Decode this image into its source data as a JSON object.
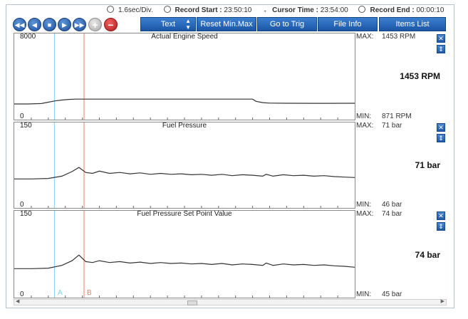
{
  "status": {
    "time_div": "1.6sec/Div.",
    "record_start_label": "Record Start :",
    "record_start": "23:50:10",
    "cursor_time_label": "Cursor Time :",
    "cursor_time": "23:54:00",
    "record_end_label": "Record End :",
    "record_end": "00:00:10"
  },
  "toolbar": {
    "text_button": "Text",
    "reset_button": "Reset Min.Max",
    "goto_trig_button": "Go to Trig",
    "file_info_button": "File Info",
    "items_list_button": "Items List"
  },
  "cursors": {
    "a_label": "A",
    "b_label": "B",
    "a_color": "#7fd0ea",
    "b_color": "#e0826a"
  },
  "charts": [
    {
      "title": "Actual Engine Speed",
      "ymax": "8000",
      "ymin": "0",
      "max_label": "MAX:",
      "max_value": "1453 RPM",
      "min_label": "MIN:",
      "min_value": "871 RPM",
      "current_value": "1453 RPM"
    },
    {
      "title": "Fuel Pressure",
      "ymax": "150",
      "ymin": "0",
      "max_label": "MAX:",
      "max_value": "71 bar",
      "min_label": "MIN:",
      "min_value": "46 bar",
      "current_value": "71 bar"
    },
    {
      "title": "Fuel Pressure Set Point Value",
      "ymax": "150",
      "ymin": "0",
      "max_label": "MAX:",
      "max_value": "74 bar",
      "min_label": "MIN:",
      "min_value": "45 bar",
      "current_value": "74 bar"
    }
  ],
  "chart_data": [
    {
      "type": "line",
      "title": "Actual Engine Speed",
      "ylim": [
        0,
        8000
      ],
      "x": [
        0,
        4,
        8,
        10,
        12,
        14,
        16,
        18,
        20,
        22,
        24,
        26,
        28,
        30,
        32,
        40,
        50,
        60,
        70,
        71,
        73,
        75,
        80,
        90,
        100
      ],
      "values": [
        900,
        900,
        950,
        1100,
        1250,
        1350,
        1420,
        1450,
        1450,
        1450,
        1450,
        1450,
        1450,
        1450,
        1453,
        1453,
        1453,
        1453,
        1453,
        1200,
        1050,
        1000,
        980,
        970,
        980
      ]
    },
    {
      "type": "line",
      "title": "Fuel Pressure",
      "ylim": [
        0,
        150
      ],
      "x": [
        0,
        5,
        10,
        14,
        17,
        19,
        21,
        23,
        25,
        28,
        31,
        34,
        37,
        40,
        43,
        46,
        49,
        52,
        55,
        58,
        61,
        64,
        67,
        70,
        73,
        74,
        76,
        79,
        82,
        85,
        88,
        91,
        94,
        97,
        100
      ],
      "values": [
        46,
        46,
        47,
        52,
        62,
        71,
        60,
        58,
        63,
        58,
        60,
        57,
        59,
        56,
        58,
        56,
        57,
        55,
        56,
        54,
        56,
        53,
        55,
        54,
        52,
        56,
        52,
        55,
        53,
        54,
        52,
        53,
        51,
        50,
        49
      ]
    },
    {
      "type": "line",
      "title": "Fuel Pressure Set Point Value",
      "ylim": [
        0,
        150
      ],
      "x": [
        0,
        5,
        10,
        14,
        17,
        19,
        21,
        23,
        25,
        28,
        31,
        34,
        37,
        40,
        43,
        46,
        49,
        52,
        55,
        58,
        61,
        64,
        67,
        70,
        73,
        74,
        76,
        79,
        82,
        85,
        88,
        91,
        94,
        97,
        100
      ],
      "values": [
        45,
        45,
        46,
        52,
        62,
        74,
        60,
        58,
        62,
        58,
        60,
        57,
        59,
        56,
        58,
        56,
        57,
        55,
        56,
        54,
        56,
        53,
        55,
        54,
        52,
        57,
        52,
        55,
        53,
        54,
        52,
        53,
        51,
        50,
        48
      ]
    }
  ],
  "cursor_positions": {
    "a": 11.8,
    "b": 20.5
  }
}
